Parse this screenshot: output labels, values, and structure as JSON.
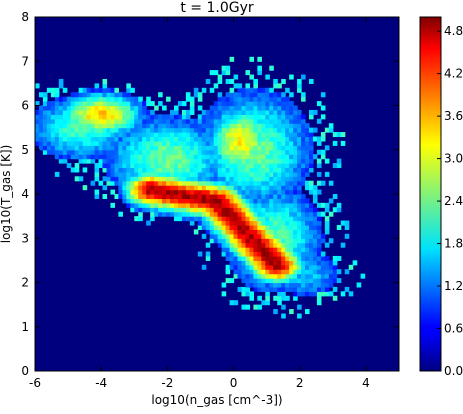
{
  "chart_data": {
    "type": "heatmap",
    "title": "t = 1.0Gyr",
    "xlabel": "log10(n_gas [cm^-3])",
    "ylabel": "log10(T_gas [K])",
    "xlim": [
      -6,
      5
    ],
    "ylim": [
      0,
      8
    ],
    "x_ticks": [
      "-6",
      "-4",
      "-2",
      "0",
      "2",
      "4"
    ],
    "x_tick_values": [
      -6,
      -4,
      -2,
      0,
      2,
      4
    ],
    "y_ticks": [
      "0",
      "1",
      "2",
      "3",
      "4",
      "5",
      "6",
      "7",
      "8"
    ],
    "y_tick_values": [
      0,
      1,
      2,
      3,
      4,
      5,
      6,
      7,
      8
    ],
    "colorbar": {
      "range": [
        0.0,
        5.0
      ],
      "ticks": [
        "0.0",
        "0.6",
        "1.2",
        "1.8",
        "2.4",
        "3.0",
        "3.6",
        "4.2",
        "4.8"
      ],
      "tick_values": [
        0.0,
        0.6,
        1.2,
        1.8,
        2.4,
        3.0,
        3.6,
        4.2,
        4.8
      ],
      "colormap": "jet"
    },
    "background_color": "#00007f",
    "features": [
      {
        "region": "hot diffuse clump",
        "x": -4.0,
        "y": 5.8,
        "peak": 3.6
      },
      {
        "region": "hot dense clump",
        "x": 0.2,
        "y": 5.2,
        "peak": 3.4
      },
      {
        "region": "cooling ridge",
        "x": [
          -2.5,
          -0.5,
          0.3,
          1.3
        ],
        "y": [
          4.1,
          3.85,
          3.2,
          2.4
        ],
        "peak": 5.0
      }
    ]
  }
}
